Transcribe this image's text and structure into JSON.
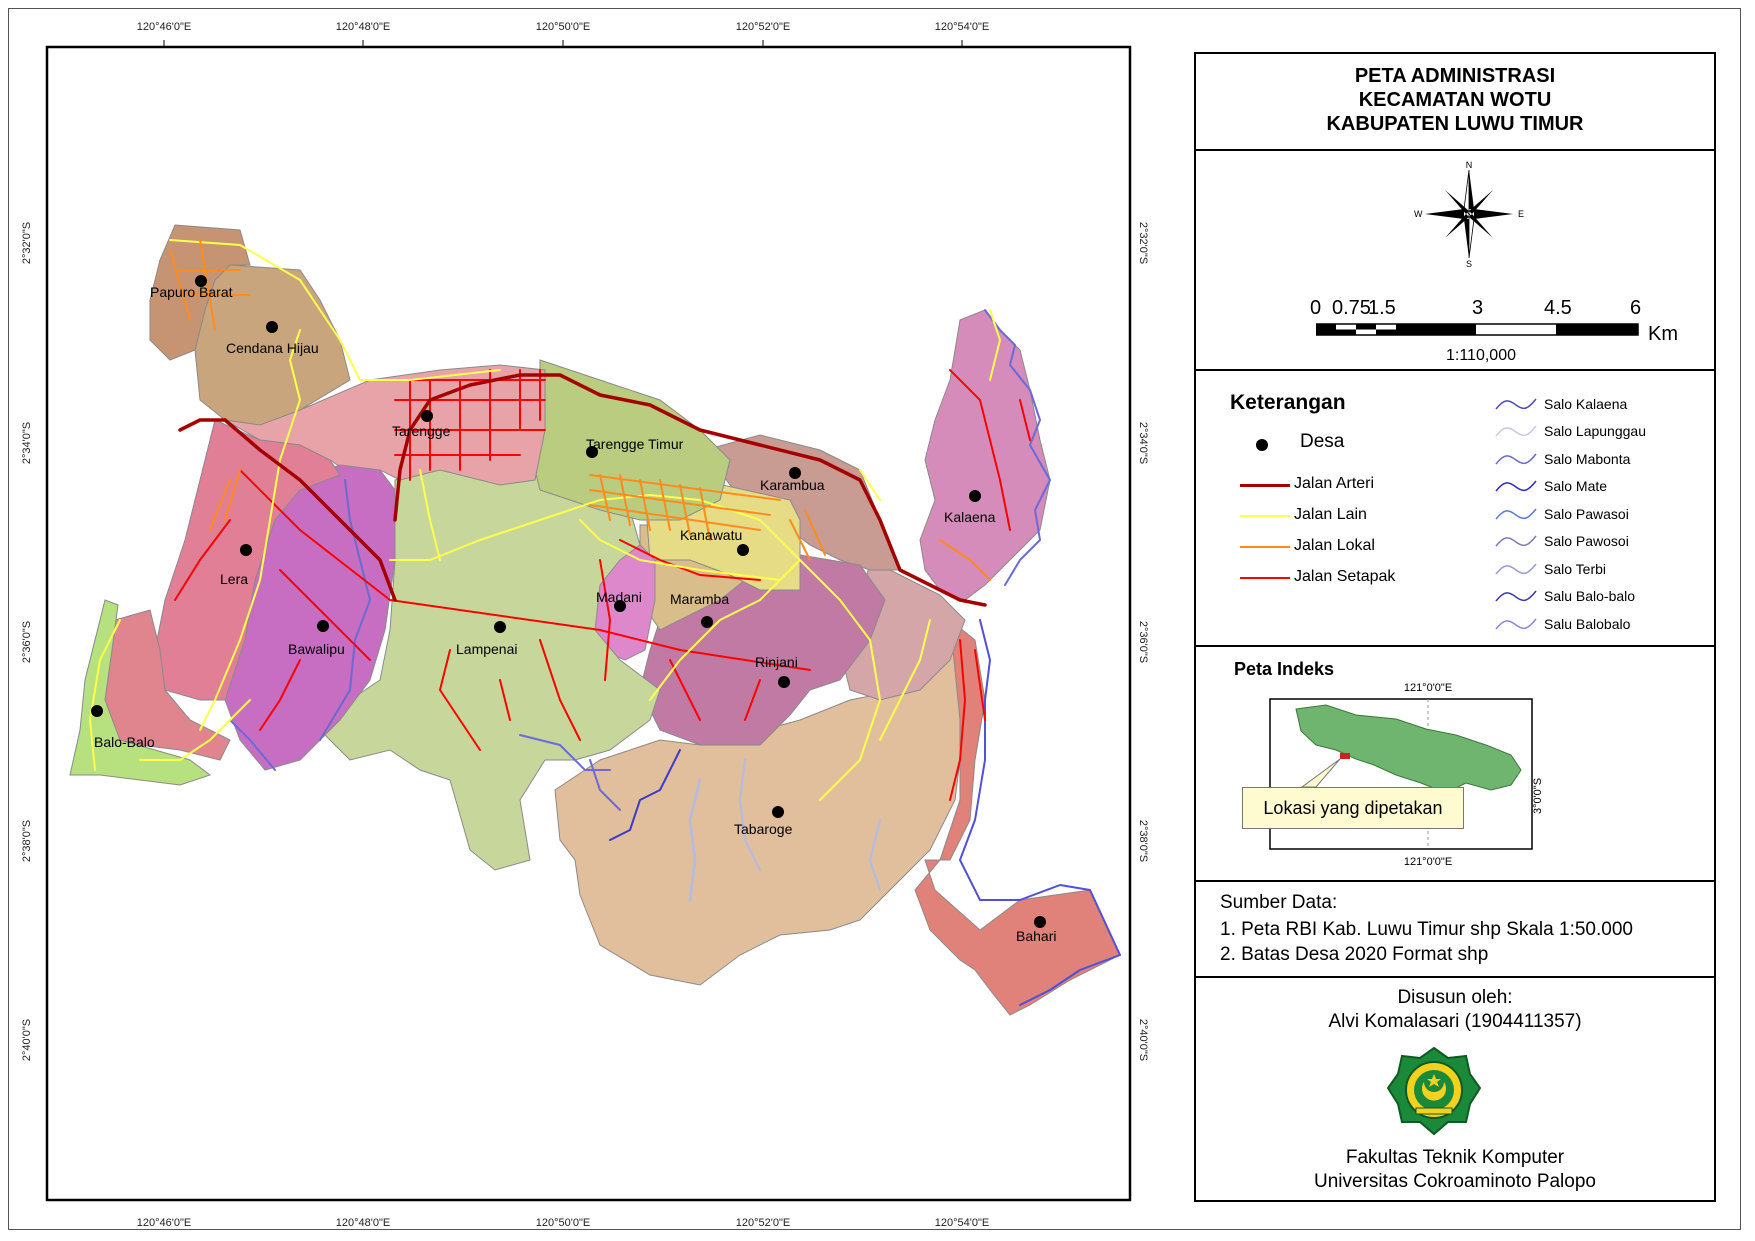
{
  "map": {
    "grid_labels": {
      "lon_top": [
        "120°46'0\"E",
        "120°48'0\"E",
        "120°50'0\"E",
        "120°52'0\"E",
        "120°54'0\"E"
      ],
      "lon_bottom": [
        "120°46'0\"E",
        "120°48'0\"E",
        "120°50'0\"E",
        "120°52'0\"E",
        "120°54'0\"E"
      ],
      "lat_left": [
        "2°32'0\"S",
        "2°34'0\"S",
        "2°36'0\"S",
        "2°38'0\"S",
        "2°40'0\"S"
      ],
      "lat_right": [
        "2°32'0\"S",
        "2°34'0\"S",
        "2°36'0\"S",
        "2°38'0\"S",
        "2°40'0\"S"
      ]
    },
    "villages": [
      "Papuro Barat",
      "Cendana Hijau",
      "Tarengge",
      "Tarengge Timur",
      "Karambua",
      "Kalaena",
      "Kanawatu",
      "Lera",
      "Bawalipu",
      "Lampenai",
      "Madani",
      "Maramba",
      "Rinjani",
      "Balo-Balo",
      "Tabaroge",
      "Bahari"
    ],
    "colors": {
      "arteri": "#a50000",
      "lain": "#ffff4d",
      "lokal": "#ff8c1a",
      "setapak": "#ff0000",
      "river": "#4a4ad6"
    }
  },
  "legend": {
    "title_lines": [
      "PETA ADMINISTRASI",
      "KECAMATAN WOTU",
      "KABUPATEN LUWU TIMUR"
    ],
    "compass": {
      "n": "N",
      "s": "S",
      "e": "E",
      "w": "W"
    },
    "scale": {
      "labels": [
        "0",
        "0.75",
        "1.5",
        "3",
        "4.5",
        "6"
      ],
      "unit": "Km",
      "ratio": "1:110,000"
    },
    "keterangan": {
      "title": "Keterangan",
      "desa": "Desa",
      "roads": [
        {
          "label": "Jalan Arteri",
          "color": "#a50000"
        },
        {
          "label": "Jalan Lain",
          "color": "#ffff4d"
        },
        {
          "label": "Jalan Lokal",
          "color": "#ff8c1a"
        },
        {
          "label": "Jalan Setapak",
          "color": "#ff0000"
        }
      ],
      "rivers": [
        {
          "label": "Salo Kalaena",
          "color": "#4a4ab8"
        },
        {
          "label": "Salo Lapunggau",
          "color": "#c7cbe8"
        },
        {
          "label": "Salo Mabonta",
          "color": "#6a6ac8"
        },
        {
          "label": "Salo Mate",
          "color": "#2a2ad0"
        },
        {
          "label": "Salo Pawasoi",
          "color": "#5a7ad8"
        },
        {
          "label": "Salo Pawosoi",
          "color": "#7a7ab8"
        },
        {
          "label": "Salo Terbi",
          "color": "#9a9ad8"
        },
        {
          "label": "Salu Balo-balo",
          "color": "#3a3aa8"
        },
        {
          "label": "Salu Balobalo",
          "color": "#8a8ae0"
        }
      ]
    },
    "index_map": {
      "title": "Peta Indeks",
      "lon_top": "121°0'0\"E",
      "lon_bottom": "121°0'0\"E",
      "lat_right": "3°0'0\"S",
      "callout": "Lokasi yang dipetakan"
    },
    "sources": {
      "title": "Sumber Data:",
      "items": [
        "1. Peta RBI Kab. Luwu Timur shp Skala 1:50.000",
        "2. Batas Desa 2020 Format shp"
      ]
    },
    "credit": {
      "label": "Disusun oleh:",
      "author": "Alvi Komalasari (1904411357)",
      "faculty": "Fakultas Teknik Komputer",
      "university": "Universitas Cokroaminoto Palopo"
    }
  }
}
